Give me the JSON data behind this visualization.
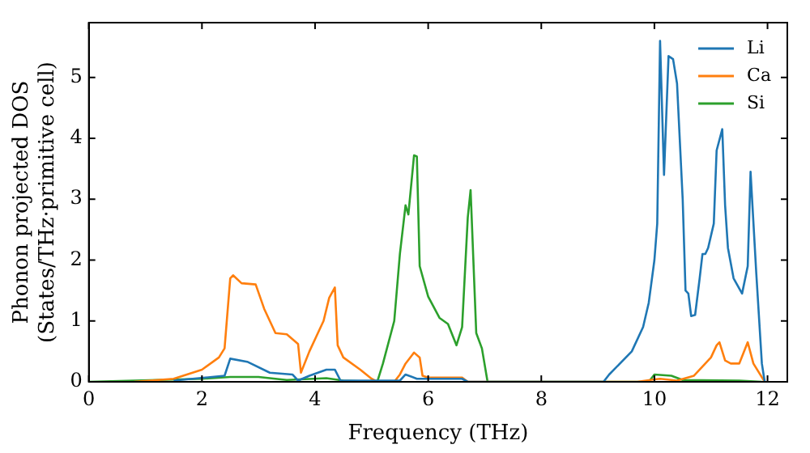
{
  "chart_data": {
    "type": "line",
    "xlabel": "Frequency (THz)",
    "ylabel": "Phonon projected DOS\n(States/THz·primitive cell)",
    "xlim": [
      0,
      12.35
    ],
    "ylim": [
      0,
      5.9
    ],
    "xticks": [
      0,
      2,
      4,
      6,
      8,
      10,
      12
    ],
    "yticks": [
      0,
      1,
      2,
      3,
      4,
      5
    ],
    "grid": false,
    "legend": "top right",
    "marker": "none",
    "line_style": "solid",
    "series": [
      {
        "name": "Li",
        "color": "#1f77b4",
        "x": [
          1.5,
          2.4,
          2.5,
          2.8,
          3.2,
          3.6,
          3.7,
          3.9,
          4.2,
          4.35,
          4.45,
          5.5,
          5.6,
          5.8,
          6.6,
          6.7,
          9.1,
          9.2,
          9.6,
          9.8,
          9.9,
          10.0,
          10.05,
          10.1,
          10.17,
          10.25,
          10.33,
          10.4,
          10.5,
          10.55,
          10.6,
          10.65,
          10.72,
          10.8,
          10.85,
          10.9,
          10.95,
          11.05,
          11.1,
          11.2,
          11.25,
          11.3,
          11.4,
          11.55,
          11.65,
          11.7,
          11.8,
          11.9,
          11.95
        ],
        "values": [
          0.02,
          0.1,
          0.38,
          0.33,
          0.15,
          0.12,
          0.02,
          0.1,
          0.2,
          0.2,
          0.02,
          0.02,
          0.12,
          0.05,
          0.05,
          0,
          0,
          0.12,
          0.5,
          0.9,
          1.3,
          2.0,
          2.6,
          5.6,
          3.4,
          5.35,
          5.3,
          4.9,
          3.0,
          1.5,
          1.45,
          1.08,
          1.1,
          1.7,
          2.1,
          2.1,
          2.2,
          2.6,
          3.8,
          4.15,
          2.9,
          2.2,
          1.7,
          1.45,
          1.9,
          3.45,
          1.8,
          0.3,
          0
        ]
      },
      {
        "name": "Ca",
        "color": "#ff7f0e",
        "x": [
          0.8,
          1.5,
          2.0,
          2.3,
          2.4,
          2.5,
          2.55,
          2.7,
          2.95,
          3.1,
          3.3,
          3.5,
          3.7,
          3.75,
          3.9,
          4.05,
          4.15,
          4.25,
          4.35,
          4.4,
          4.5,
          4.8,
          5.0,
          5.1,
          5.4,
          5.5,
          5.6,
          5.75,
          5.85,
          5.9,
          6.0,
          6.6,
          6.7,
          9.7,
          10.0,
          10.1,
          10.4,
          10.7,
          10.9,
          11.0,
          11.1,
          11.15,
          11.25,
          11.35,
          11.5,
          11.65,
          11.75,
          11.95
        ],
        "values": [
          0,
          0.05,
          0.2,
          0.4,
          0.55,
          1.7,
          1.75,
          1.62,
          1.6,
          1.2,
          0.8,
          0.78,
          0.62,
          0.15,
          0.5,
          0.8,
          1.0,
          1.38,
          1.55,
          0.6,
          0.4,
          0.2,
          0.05,
          0,
          0,
          0.12,
          0.3,
          0.48,
          0.4,
          0.1,
          0.07,
          0.07,
          0,
          0,
          0.04,
          0.05,
          0.02,
          0.1,
          0.3,
          0.4,
          0.6,
          0.65,
          0.35,
          0.3,
          0.3,
          0.65,
          0.3,
          0
        ]
      },
      {
        "name": "Si",
        "color": "#2ca02c",
        "x": [
          0,
          2.0,
          2.5,
          3.0,
          3.5,
          4.2,
          4.5,
          5.1,
          5.2,
          5.4,
          5.5,
          5.6,
          5.65,
          5.75,
          5.8,
          5.85,
          6.0,
          6.2,
          6.35,
          6.5,
          6.6,
          6.7,
          6.75,
          6.85,
          6.95,
          7.05,
          9.9,
          10.0,
          10.3,
          10.5,
          11.5,
          11.9
        ],
        "values": [
          0,
          0.05,
          0.08,
          0.08,
          0.03,
          0.06,
          0.02,
          0,
          0.3,
          1.0,
          2.1,
          2.9,
          2.75,
          3.72,
          3.7,
          1.9,
          1.4,
          1.05,
          0.95,
          0.6,
          0.9,
          2.7,
          3.15,
          0.8,
          0.55,
          0,
          0,
          0.12,
          0.1,
          0.03,
          0.02,
          0
        ]
      }
    ]
  }
}
